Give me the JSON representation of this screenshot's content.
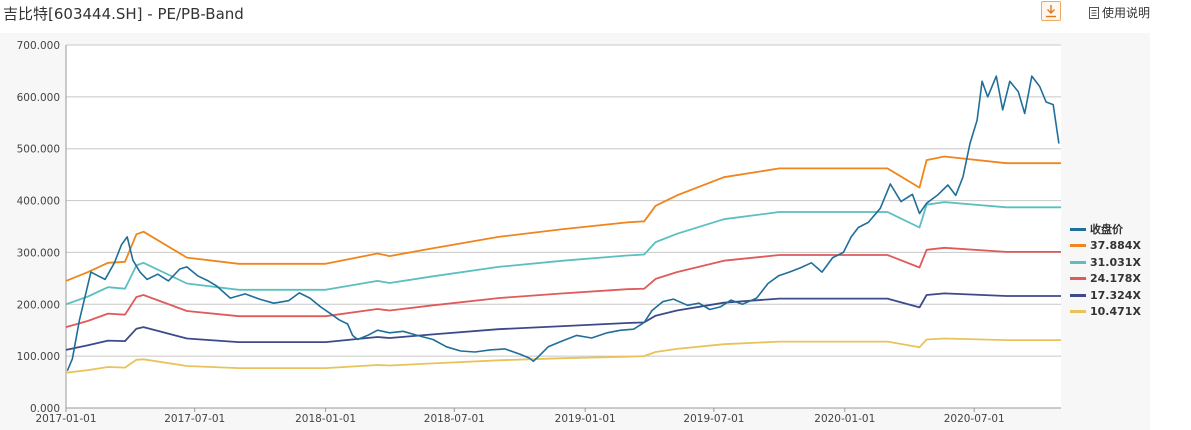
{
  "header": {
    "title": "吉比特[603444.SH] - PE/PB-Band",
    "download_icon": "download-icon",
    "help_icon": "document-icon",
    "help_label": "使用说明"
  },
  "chart_data": {
    "type": "line",
    "title": "",
    "xlabel": "",
    "ylabel": "",
    "x_range": [
      "2017-01-01",
      "2020-10-31"
    ],
    "ylim": [
      0,
      700
    ],
    "y_ticks": [
      0,
      100,
      200,
      300,
      400,
      500,
      600,
      700
    ],
    "y_tick_labels": [
      "0.000",
      "100.000",
      "200.000",
      "300.000",
      "400.000",
      "500.000",
      "600.000",
      "700.000"
    ],
    "x_ticks": [
      "2017-01-01",
      "2017-07-01",
      "2018-01-01",
      "2018-07-01",
      "2019-01-01",
      "2019-07-01",
      "2020-01-01",
      "2020-07-01"
    ],
    "grid": "horizontal",
    "legend_position": "right",
    "series": [
      {
        "name": "收盘价",
        "color": "#1f6f9a",
        "points": [
          [
            "2017-01-03",
            72
          ],
          [
            "2017-01-10",
            95
          ],
          [
            "2017-01-20",
            170
          ],
          [
            "2017-02-05",
            262
          ],
          [
            "2017-02-15",
            255
          ],
          [
            "2017-02-25",
            248
          ],
          [
            "2017-03-10",
            280
          ],
          [
            "2017-03-20",
            315
          ],
          [
            "2017-03-28",
            330
          ],
          [
            "2017-04-05",
            285
          ],
          [
            "2017-04-15",
            262
          ],
          [
            "2017-04-25",
            248
          ],
          [
            "2017-05-10",
            258
          ],
          [
            "2017-05-25",
            245
          ],
          [
            "2017-06-10",
            268
          ],
          [
            "2017-06-20",
            272
          ],
          [
            "2017-07-05",
            255
          ],
          [
            "2017-07-20",
            245
          ],
          [
            "2017-08-01",
            235
          ],
          [
            "2017-08-20",
            212
          ],
          [
            "2017-09-10",
            220
          ],
          [
            "2017-09-30",
            210
          ],
          [
            "2017-10-20",
            202
          ],
          [
            "2017-11-10",
            207
          ],
          [
            "2017-11-25",
            222
          ],
          [
            "2017-12-10",
            212
          ],
          [
            "2017-12-25",
            195
          ],
          [
            "2018-01-10",
            180
          ],
          [
            "2018-01-20",
            170
          ],
          [
            "2018-02-01",
            162
          ],
          [
            "2018-02-08",
            140
          ],
          [
            "2018-02-15",
            132
          ],
          [
            "2018-03-01",
            140
          ],
          [
            "2018-03-15",
            150
          ],
          [
            "2018-04-01",
            145
          ],
          [
            "2018-04-20",
            148
          ],
          [
            "2018-05-10",
            140
          ],
          [
            "2018-06-01",
            132
          ],
          [
            "2018-06-20",
            118
          ],
          [
            "2018-07-10",
            110
          ],
          [
            "2018-07-30",
            108
          ],
          [
            "2018-08-20",
            112
          ],
          [
            "2018-09-10",
            114
          ],
          [
            "2018-10-01",
            104
          ],
          [
            "2018-10-15",
            96
          ],
          [
            "2018-10-20",
            90
          ],
          [
            "2018-10-28",
            100
          ],
          [
            "2018-11-10",
            118
          ],
          [
            "2018-12-01",
            130
          ],
          [
            "2018-12-20",
            140
          ],
          [
            "2019-01-10",
            135
          ],
          [
            "2019-02-01",
            145
          ],
          [
            "2019-02-20",
            150
          ],
          [
            "2019-03-10",
            152
          ],
          [
            "2019-03-25",
            165
          ],
          [
            "2019-04-05",
            188
          ],
          [
            "2019-04-20",
            205
          ],
          [
            "2019-05-05",
            210
          ],
          [
            "2019-05-25",
            198
          ],
          [
            "2019-06-10",
            202
          ],
          [
            "2019-06-25",
            190
          ],
          [
            "2019-07-10",
            195
          ],
          [
            "2019-07-25",
            208
          ],
          [
            "2019-08-10",
            200
          ],
          [
            "2019-08-30",
            212
          ],
          [
            "2019-09-15",
            240
          ],
          [
            "2019-09-30",
            255
          ],
          [
            "2019-10-15",
            262
          ],
          [
            "2019-10-30",
            270
          ],
          [
            "2019-11-15",
            280
          ],
          [
            "2019-11-30",
            262
          ],
          [
            "2019-12-15",
            290
          ],
          [
            "2019-12-30",
            300
          ],
          [
            "2020-01-10",
            330
          ],
          [
            "2020-01-20",
            348
          ],
          [
            "2020-02-03",
            358
          ],
          [
            "2020-02-20",
            385
          ],
          [
            "2020-03-05",
            432
          ],
          [
            "2020-03-20",
            398
          ],
          [
            "2020-04-05",
            412
          ],
          [
            "2020-04-15",
            375
          ],
          [
            "2020-04-25",
            395
          ],
          [
            "2020-05-10",
            410
          ],
          [
            "2020-05-25",
            430
          ],
          [
            "2020-06-05",
            410
          ],
          [
            "2020-06-15",
            445
          ],
          [
            "2020-06-25",
            510
          ],
          [
            "2020-07-05",
            555
          ],
          [
            "2020-07-12",
            630
          ],
          [
            "2020-07-20",
            600
          ],
          [
            "2020-08-01",
            640
          ],
          [
            "2020-08-10",
            575
          ],
          [
            "2020-08-20",
            630
          ],
          [
            "2020-09-01",
            610
          ],
          [
            "2020-09-10",
            568
          ],
          [
            "2020-09-20",
            640
          ],
          [
            "2020-10-01",
            620
          ],
          [
            "2020-10-10",
            590
          ],
          [
            "2020-10-20",
            585
          ],
          [
            "2020-10-28",
            510
          ]
        ]
      },
      {
        "name": "37.884X",
        "color": "#f0851c",
        "points": [
          [
            "2017-01-01",
            245
          ],
          [
            "2017-02-01",
            262
          ],
          [
            "2017-03-01",
            280
          ],
          [
            "2017-03-25",
            282
          ],
          [
            "2017-04-10",
            335
          ],
          [
            "2017-04-20",
            340
          ],
          [
            "2017-06-20",
            290
          ],
          [
            "2017-09-01",
            278
          ],
          [
            "2018-01-01",
            278
          ],
          [
            "2018-03-15",
            298
          ],
          [
            "2018-04-01",
            293
          ],
          [
            "2018-06-01",
            308
          ],
          [
            "2018-09-01",
            330
          ],
          [
            "2018-12-01",
            345
          ],
          [
            "2019-03-01",
            358
          ],
          [
            "2019-03-25",
            360
          ],
          [
            "2019-04-10",
            390
          ],
          [
            "2019-05-10",
            410
          ],
          [
            "2019-07-15",
            445
          ],
          [
            "2019-10-01",
            462
          ],
          [
            "2020-03-01",
            462
          ],
          [
            "2020-04-15",
            425
          ],
          [
            "2020-04-25",
            478
          ],
          [
            "2020-05-20",
            485
          ],
          [
            "2020-08-15",
            472
          ],
          [
            "2020-10-31",
            472
          ]
        ]
      },
      {
        "name": "31.031X",
        "color": "#5bbfc0",
        "points": [
          [
            "2017-01-01",
            200
          ],
          [
            "2017-02-01",
            215
          ],
          [
            "2017-03-01",
            233
          ],
          [
            "2017-03-25",
            230
          ],
          [
            "2017-04-10",
            275
          ],
          [
            "2017-04-20",
            280
          ],
          [
            "2017-06-20",
            240
          ],
          [
            "2017-09-01",
            228
          ],
          [
            "2018-01-01",
            228
          ],
          [
            "2018-03-15",
            245
          ],
          [
            "2018-04-01",
            241
          ],
          [
            "2018-06-01",
            254
          ],
          [
            "2018-09-01",
            272
          ],
          [
            "2018-12-01",
            284
          ],
          [
            "2019-03-01",
            294
          ],
          [
            "2019-03-25",
            296
          ],
          [
            "2019-04-10",
            320
          ],
          [
            "2019-05-10",
            336
          ],
          [
            "2019-07-15",
            364
          ],
          [
            "2019-10-01",
            378
          ],
          [
            "2020-03-01",
            378
          ],
          [
            "2020-04-15",
            348
          ],
          [
            "2020-04-25",
            392
          ],
          [
            "2020-05-20",
            397
          ],
          [
            "2020-08-15",
            387
          ],
          [
            "2020-10-31",
            387
          ]
        ]
      },
      {
        "name": "24.178X",
        "color": "#e05a5a",
        "points": [
          [
            "2017-01-01",
            156
          ],
          [
            "2017-02-01",
            168
          ],
          [
            "2017-03-01",
            182
          ],
          [
            "2017-03-25",
            180
          ],
          [
            "2017-04-10",
            214
          ],
          [
            "2017-04-20",
            218
          ],
          [
            "2017-06-20",
            187
          ],
          [
            "2017-09-01",
            177
          ],
          [
            "2018-01-01",
            177
          ],
          [
            "2018-03-15",
            191
          ],
          [
            "2018-04-01",
            188
          ],
          [
            "2018-06-01",
            198
          ],
          [
            "2018-09-01",
            212
          ],
          [
            "2018-12-01",
            221
          ],
          [
            "2019-03-01",
            229
          ],
          [
            "2019-03-25",
            230
          ],
          [
            "2019-04-10",
            249
          ],
          [
            "2019-05-10",
            262
          ],
          [
            "2019-07-15",
            284
          ],
          [
            "2019-10-01",
            295
          ],
          [
            "2020-03-01",
            295
          ],
          [
            "2020-04-15",
            271
          ],
          [
            "2020-04-25",
            305
          ],
          [
            "2020-05-20",
            309
          ],
          [
            "2020-08-15",
            301
          ],
          [
            "2020-10-31",
            301
          ]
        ]
      },
      {
        "name": "17.324X",
        "color": "#3d4a8a",
        "points": [
          [
            "2017-01-01",
            112
          ],
          [
            "2017-02-01",
            121
          ],
          [
            "2017-03-01",
            130
          ],
          [
            "2017-03-25",
            129
          ],
          [
            "2017-04-10",
            153
          ],
          [
            "2017-04-20",
            156
          ],
          [
            "2017-06-20",
            134
          ],
          [
            "2017-09-01",
            127
          ],
          [
            "2018-01-01",
            127
          ],
          [
            "2018-03-15",
            137
          ],
          [
            "2018-04-01",
            135
          ],
          [
            "2018-06-01",
            142
          ],
          [
            "2018-09-01",
            152
          ],
          [
            "2018-12-01",
            158
          ],
          [
            "2019-03-01",
            164
          ],
          [
            "2019-03-25",
            165
          ],
          [
            "2019-04-10",
            178
          ],
          [
            "2019-05-10",
            188
          ],
          [
            "2019-07-15",
            203
          ],
          [
            "2019-10-01",
            211
          ],
          [
            "2020-03-01",
            211
          ],
          [
            "2020-04-15",
            194
          ],
          [
            "2020-04-25",
            218
          ],
          [
            "2020-05-20",
            221
          ],
          [
            "2020-08-15",
            216
          ],
          [
            "2020-10-31",
            216
          ]
        ]
      },
      {
        "name": "10.471X",
        "color": "#e8c35a",
        "points": [
          [
            "2017-01-01",
            68
          ],
          [
            "2017-02-01",
            73
          ],
          [
            "2017-03-01",
            79
          ],
          [
            "2017-03-25",
            78
          ],
          [
            "2017-04-10",
            93
          ],
          [
            "2017-04-20",
            94
          ],
          [
            "2017-06-20",
            81
          ],
          [
            "2017-09-01",
            77
          ],
          [
            "2018-01-01",
            77
          ],
          [
            "2018-03-15",
            83
          ],
          [
            "2018-04-01",
            82
          ],
          [
            "2018-06-01",
            86
          ],
          [
            "2018-09-01",
            92
          ],
          [
            "2018-12-01",
            96
          ],
          [
            "2019-03-01",
            99
          ],
          [
            "2019-03-25",
            100
          ],
          [
            "2019-04-10",
            108
          ],
          [
            "2019-05-10",
            114
          ],
          [
            "2019-07-15",
            123
          ],
          [
            "2019-10-01",
            128
          ],
          [
            "2020-03-01",
            128
          ],
          [
            "2020-04-15",
            117
          ],
          [
            "2020-04-25",
            132
          ],
          [
            "2020-05-20",
            134
          ],
          [
            "2020-08-15",
            131
          ],
          [
            "2020-10-31",
            131
          ]
        ]
      }
    ]
  }
}
